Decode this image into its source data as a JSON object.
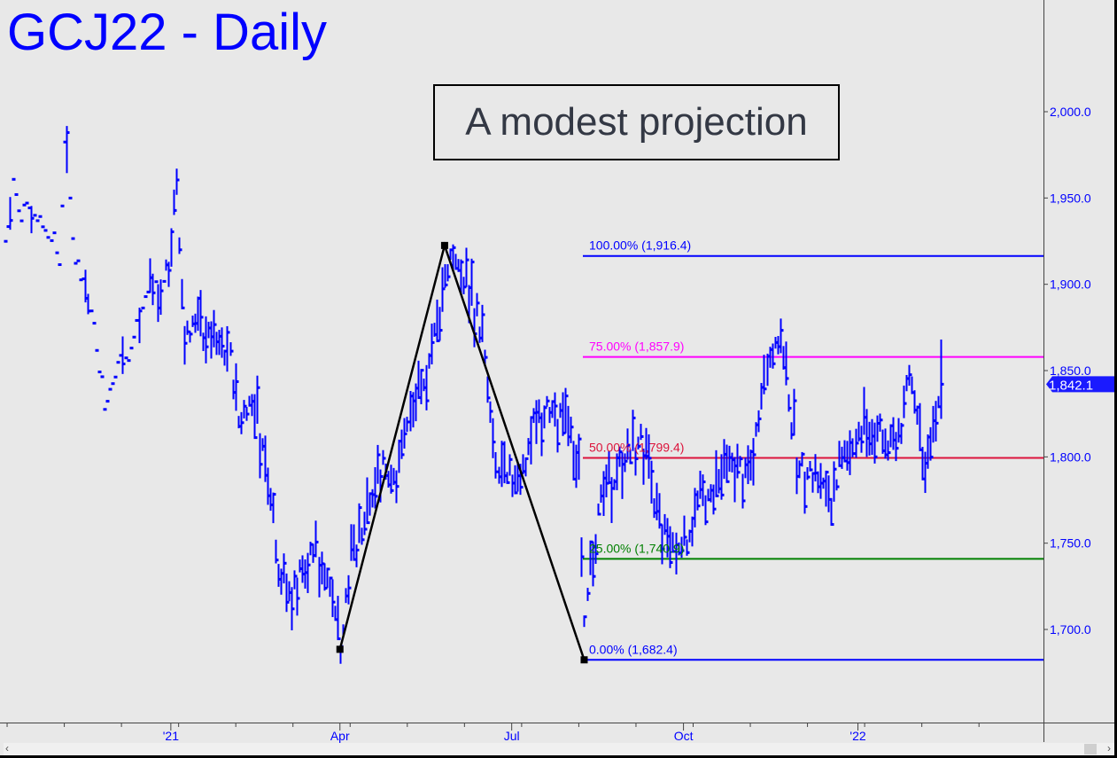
{
  "title": "GCJ22 - Daily",
  "annotation": "A modest projection",
  "colors": {
    "bars": "#0000ff",
    "pattern": "#000000",
    "fib100": "#0000ff",
    "fib75": "#ff00ff",
    "fib50": "#dc143c",
    "fib25": "#008000",
    "fib0": "#0000ff",
    "last_tag": "#1a1aff"
  },
  "chart_data": {
    "type": "bar",
    "title": "GCJ22 - Daily",
    "ylim": [
      1625,
      2065
    ],
    "y_ticks": [
      "2,000.0",
      "1,950.0",
      "1,900.0",
      "1,850.0",
      "1,800.0",
      "1,750.0",
      "1,700.0"
    ],
    "y_tick_values": [
      2000,
      1950,
      1900,
      1850,
      1800,
      1750,
      1700
    ],
    "x_labels": [
      {
        "label": "'21",
        "t": 62
      },
      {
        "label": "Apr",
        "t": 125
      },
      {
        "label": "Jul",
        "t": 189
      },
      {
        "label": "Oct",
        "t": 253
      },
      {
        "label": "'22",
        "t": 318
      }
    ],
    "last_price": "1,842.1",
    "last_price_value": 1842.1,
    "price_path": [
      {
        "t": 0,
        "p": 1925
      },
      {
        "t": 3,
        "p": 1958
      },
      {
        "t": 6,
        "p": 1940
      },
      {
        "t": 10,
        "p": 1945
      },
      {
        "t": 13,
        "p": 1935
      },
      {
        "t": 18,
        "p": 1928
      },
      {
        "t": 20,
        "p": 1912
      },
      {
        "t": 22,
        "p": 1980
      },
      {
        "t": 26,
        "p": 1915
      },
      {
        "t": 30,
        "p": 1900
      },
      {
        "t": 34,
        "p": 1865
      },
      {
        "t": 37,
        "p": 1832
      },
      {
        "t": 42,
        "p": 1855
      },
      {
        "t": 46,
        "p": 1860
      },
      {
        "t": 50,
        "p": 1880
      },
      {
        "t": 54,
        "p": 1898
      },
      {
        "t": 58,
        "p": 1900
      },
      {
        "t": 61,
        "p": 1915
      },
      {
        "t": 64,
        "p": 1955
      },
      {
        "t": 67,
        "p": 1870
      },
      {
        "t": 72,
        "p": 1878
      },
      {
        "t": 78,
        "p": 1868
      },
      {
        "t": 84,
        "p": 1860
      },
      {
        "t": 87,
        "p": 1820
      },
      {
        "t": 92,
        "p": 1835
      },
      {
        "t": 96,
        "p": 1805
      },
      {
        "t": 99,
        "p": 1785
      },
      {
        "t": 102,
        "p": 1740
      },
      {
        "t": 106,
        "p": 1718
      },
      {
        "t": 110,
        "p": 1735
      },
      {
        "t": 115,
        "p": 1742
      },
      {
        "t": 120,
        "p": 1735
      },
      {
        "t": 125,
        "p": 1692
      },
      {
        "t": 128,
        "p": 1735
      },
      {
        "t": 132,
        "p": 1750
      },
      {
        "t": 137,
        "p": 1775
      },
      {
        "t": 141,
        "p": 1795
      },
      {
        "t": 146,
        "p": 1790
      },
      {
        "t": 150,
        "p": 1822
      },
      {
        "t": 155,
        "p": 1835
      },
      {
        "t": 160,
        "p": 1870
      },
      {
        "t": 164,
        "p": 1905
      },
      {
        "t": 166,
        "p": 1918
      },
      {
        "t": 170,
        "p": 1905
      },
      {
        "t": 174,
        "p": 1895
      },
      {
        "t": 178,
        "p": 1870
      },
      {
        "t": 180,
        "p": 1835
      },
      {
        "t": 183,
        "p": 1790
      },
      {
        "t": 188,
        "p": 1790
      },
      {
        "t": 192,
        "p": 1790
      },
      {
        "t": 197,
        "p": 1818
      },
      {
        "t": 202,
        "p": 1828
      },
      {
        "t": 210,
        "p": 1820
      },
      {
        "t": 214,
        "p": 1790
      },
      {
        "t": 216,
        "p": 1700
      },
      {
        "t": 218,
        "p": 1745
      },
      {
        "t": 222,
        "p": 1772
      },
      {
        "t": 227,
        "p": 1790
      },
      {
        "t": 232,
        "p": 1800
      },
      {
        "t": 237,
        "p": 1812
      },
      {
        "t": 241,
        "p": 1780
      },
      {
        "t": 245,
        "p": 1755
      },
      {
        "t": 250,
        "p": 1745
      },
      {
        "t": 254,
        "p": 1755
      },
      {
        "t": 260,
        "p": 1775
      },
      {
        "t": 266,
        "p": 1785
      },
      {
        "t": 272,
        "p": 1795
      },
      {
        "t": 278,
        "p": 1790
      },
      {
        "t": 281,
        "p": 1830
      },
      {
        "t": 285,
        "p": 1865
      },
      {
        "t": 289,
        "p": 1870
      },
      {
        "t": 292,
        "p": 1835
      },
      {
        "t": 295,
        "p": 1795
      },
      {
        "t": 300,
        "p": 1790
      },
      {
        "t": 305,
        "p": 1785
      },
      {
        "t": 309,
        "p": 1778
      },
      {
        "t": 313,
        "p": 1805
      },
      {
        "t": 318,
        "p": 1810
      },
      {
        "t": 322,
        "p": 1820
      },
      {
        "t": 326,
        "p": 1812
      },
      {
        "t": 330,
        "p": 1805
      },
      {
        "t": 334,
        "p": 1818
      },
      {
        "t": 337,
        "p": 1845
      },
      {
        "t": 340,
        "p": 1830
      },
      {
        "t": 342,
        "p": 1798
      },
      {
        "t": 345,
        "p": 1808
      },
      {
        "t": 348,
        "p": 1830
      },
      {
        "t": 349,
        "p": 1842
      }
    ],
    "pattern": [
      {
        "t": 125,
        "p": 1688.5
      },
      {
        "t": 164,
        "p": 1922.5
      },
      {
        "t": 216,
        "p": 1682.4
      }
    ],
    "fib_levels": [
      {
        "label": "100.00% (1,916.4)",
        "value": 1916.4
      },
      {
        "label": "75.00% (1,857.9)",
        "value": 1857.9
      },
      {
        "label": "50.00% (1,799.4)",
        "value": 1799.4
      },
      {
        "label": "25.00% (1,740.9)",
        "value": 1740.9
      },
      {
        "label": "0.00% (1,682.4)",
        "value": 1682.4
      }
    ]
  }
}
